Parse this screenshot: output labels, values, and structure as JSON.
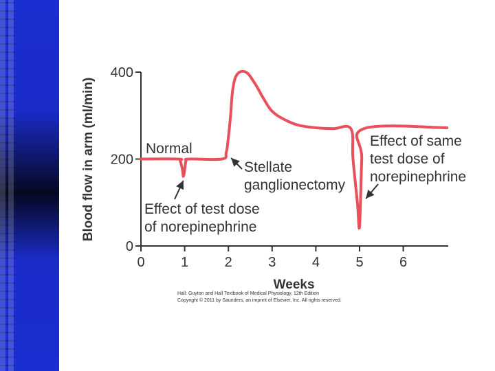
{
  "colors": {
    "line": "#e8505b",
    "axis": "#333333",
    "text": "#333333",
    "sidebar": "#1a2fd0"
  },
  "chart_data": {
    "type": "line",
    "title": "",
    "xlabel": "Weeks",
    "ylabel": "Blood flow in arm (ml/min)",
    "xlim": [
      0,
      7
    ],
    "ylim": [
      0,
      400
    ],
    "xticks": [
      0,
      1,
      2,
      3,
      4,
      5,
      6
    ],
    "yticks": [
      0,
      200,
      400
    ],
    "series": [
      {
        "name": "Blood flow",
        "x": [
          0,
          0.85,
          0.9,
          0.95,
          0.97,
          1.0,
          1.03,
          1.1,
          1.85,
          1.95,
          2.0,
          2.05,
          2.1,
          2.2,
          2.4,
          2.6,
          2.8,
          3.0,
          3.3,
          3.6,
          4.0,
          4.4,
          4.8,
          4.85,
          4.95,
          5.0,
          5.05,
          5.1,
          7.0
        ],
        "y": [
          200,
          200,
          195,
          175,
          160,
          175,
          195,
          200,
          200,
          215,
          250,
          300,
          360,
          395,
          400,
          375,
          340,
          310,
          290,
          278,
          272,
          270,
          270,
          200,
          100,
          45,
          200,
          270,
          272
        ]
      }
    ],
    "annotations": [
      {
        "text": "Normal"
      },
      {
        "text": "Effect of test dose",
        "text2": "of norepinephrine",
        "x": 0.97,
        "y": 160
      },
      {
        "text": "Stellate",
        "text2": "ganglionectomy",
        "x": 2.0,
        "y": 215
      },
      {
        "text": "Effect of same",
        "text2": "test dose of",
        "text3": "norepinephrine",
        "x": 5.05,
        "y": 100
      }
    ]
  },
  "credits": {
    "line1": "Hall: Guyton and Hall Textbook of Medical Physiology, 12th Edition",
    "line2": "Copyright © 2011 by Saunders, an imprint of Elsevier, Inc. All rights reserved."
  }
}
